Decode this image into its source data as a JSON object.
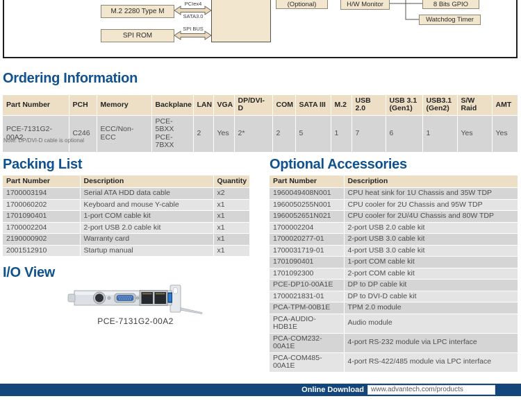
{
  "diagram": {
    "m2": "M.2 2280 Type M",
    "spi_rom": "SPI ROM",
    "optional": "(Optional)",
    "hw_monitor": "H/W Monitor",
    "gpio": "8 Bits GPIO",
    "watchdog": "Watchdog Timer",
    "bus_pcie": "PCIex4",
    "bus_sata": "SATA3.0",
    "bus_spi": "SPI BUS"
  },
  "ordering": {
    "title": "Ordering Information",
    "headers": [
      "Part Number",
      "PCH",
      "Memory",
      "Backplane",
      "LAN",
      "VGA",
      "DP/DVI-D",
      "COM",
      "SATA III",
      "M.2",
      "USB 2.0",
      "USB 3.1\n(Gen1)",
      "USB3.1\n(Gen2)",
      "S/W Raid",
      "AMT"
    ],
    "rows": [
      [
        "PCE-7131G2-00A2",
        "C246",
        "ECC/Non-ECC",
        "PCE-5BXX\nPCE-7BXX",
        "2",
        "Yes",
        "2*",
        "2",
        "5",
        "1",
        "7",
        "6",
        "1",
        "Yes",
        "Yes"
      ]
    ],
    "note": "Note: DP/DVI-D cable is optional"
  },
  "packing": {
    "title": "Packing List",
    "headers": [
      "Part Number",
      "Description",
      "Quantity"
    ],
    "rows": [
      [
        "1700003194",
        "Serial ATA HDD data cable",
        "x2"
      ],
      [
        "1700060202",
        "Keyboard and mouse Y-cable",
        "x1"
      ],
      [
        "1701090401",
        "1-port COM cable kit",
        "x1"
      ],
      [
        "1700002204",
        "2-port USB 2.0 cable kit",
        "x1"
      ],
      [
        "2190000902",
        "Warranty card",
        "x1"
      ],
      [
        "2001512910",
        "Startup manual",
        "x1"
      ]
    ]
  },
  "accessories": {
    "title": "Optional Accessories",
    "headers": [
      "Part Number",
      "Description"
    ],
    "rows": [
      [
        "1960049408N001",
        "CPU heat sink for 1U Chassis and 35W TDP"
      ],
      [
        "1960050255N001",
        "CPU cooler for 2U Chassis and 95W TDP"
      ],
      [
        "1960052651N021",
        "CPU cooler for 2U/4U Chassis and 80W TDP"
      ],
      [
        "1700002204",
        "2-port USB 2.0 cable kit"
      ],
      [
        "1700020277-01",
        "2-port USB 3.0 cable kit"
      ],
      [
        "1700031719-01",
        "4-port USB 3.0 cable kit"
      ],
      [
        "1701090401",
        "1-port COM cable kit"
      ],
      [
        "1701092300",
        "2-port COM cable kit"
      ],
      [
        "PCE-DP10-00A1E",
        "DP to DP cable kit"
      ],
      [
        "1700021831-01",
        "DP to DVI-D cable kit"
      ],
      [
        "PCA-TPM-00B1E",
        "TPM 2.0 module"
      ],
      [
        "PCA-AUDIO-HDB1E",
        "Audio module"
      ],
      [
        "PCA-COM232-00A1E",
        "4-port RS-232 module via LPC interface"
      ],
      [
        "PCA-COM485-00A1E",
        "4-port RS-422/485 module via LPC interface"
      ]
    ]
  },
  "io_view": {
    "title": "I/O View",
    "caption": "PCE-7131G2-00A2"
  },
  "footer": {
    "label": "Online Download",
    "url": "www.advantech.com/products"
  },
  "colors": {
    "heading_blue": "#10528f",
    "footer_navy": "#15467b",
    "table_header_tan": "#ecdfc5",
    "row_dark_gray": "#d5d5d5",
    "row_light_gray": "#e4e4e4",
    "diagram_box_tan": "#f3e6cf"
  }
}
